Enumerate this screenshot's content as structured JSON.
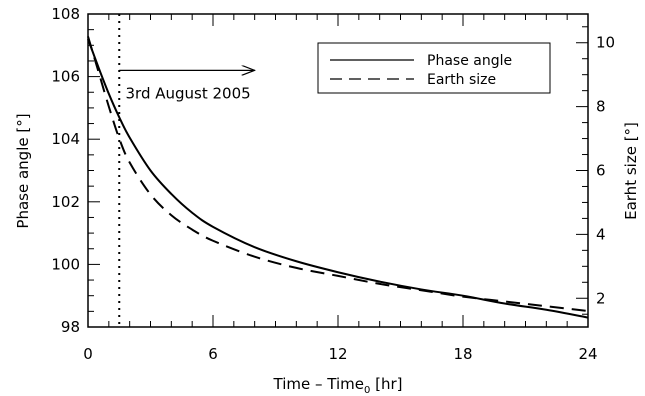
{
  "chart_data": {
    "type": "line",
    "title": "",
    "xlabel": "Time – Time",
    "xlabel_sub": "0",
    "xlabel_unit": " [hr]",
    "ylabel_left": "Phase angle [°]",
    "ylabel_right": "Earht size [°]",
    "xlim": [
      0,
      24
    ],
    "ylim_left": [
      98,
      108
    ],
    "ylim_right": [
      1.1,
      10.9
    ],
    "x_ticks": [
      0,
      6,
      12,
      18,
      24
    ],
    "x_tick_labels": [
      "0",
      "6",
      "12",
      "18",
      "24"
    ],
    "y_left_ticks": [
      98,
      100,
      102,
      104,
      106,
      108
    ],
    "y_left_tick_labels": [
      "98",
      "100",
      "102",
      "104",
      "106",
      "108"
    ],
    "y_right_ticks": [
      2,
      4,
      6,
      8,
      10
    ],
    "y_right_tick_labels": [
      "2",
      "4",
      "6",
      "8",
      "10"
    ],
    "grid": false,
    "legend_position": "top-right",
    "series": [
      {
        "name": "Phase angle",
        "axis": "left",
        "style": "solid",
        "x": [
          0,
          0.5,
          1,
          1.5,
          2,
          3,
          4,
          5,
          6,
          8,
          10,
          12,
          14,
          16,
          18,
          20,
          22,
          24
        ],
        "values": [
          107.2,
          106.3,
          105.45,
          104.7,
          104.05,
          103.0,
          102.25,
          101.65,
          101.2,
          100.55,
          100.1,
          99.75,
          99.45,
          99.2,
          99.0,
          98.75,
          98.55,
          98.3
        ]
      },
      {
        "name": "Earth size",
        "axis": "right",
        "style": "dashed",
        "x": [
          0,
          0.5,
          1,
          1.5,
          2,
          3,
          4,
          5,
          6,
          8,
          10,
          12,
          14,
          16,
          18,
          20,
          22,
          24
        ],
        "values": [
          10.2,
          9.1,
          8.0,
          7.0,
          6.25,
          5.25,
          4.6,
          4.15,
          3.8,
          3.3,
          2.95,
          2.7,
          2.45,
          2.25,
          2.05,
          1.9,
          1.75,
          1.6
        ]
      }
    ],
    "annotations": [
      {
        "type": "vline",
        "x": 1.5,
        "style": "dotted"
      },
      {
        "type": "arrow",
        "x_from": 1.5,
        "x_to": 8,
        "y": 106.2
      },
      {
        "type": "text",
        "text": "3rd August 2005",
        "x": 1.8,
        "y": 105.3
      }
    ]
  }
}
